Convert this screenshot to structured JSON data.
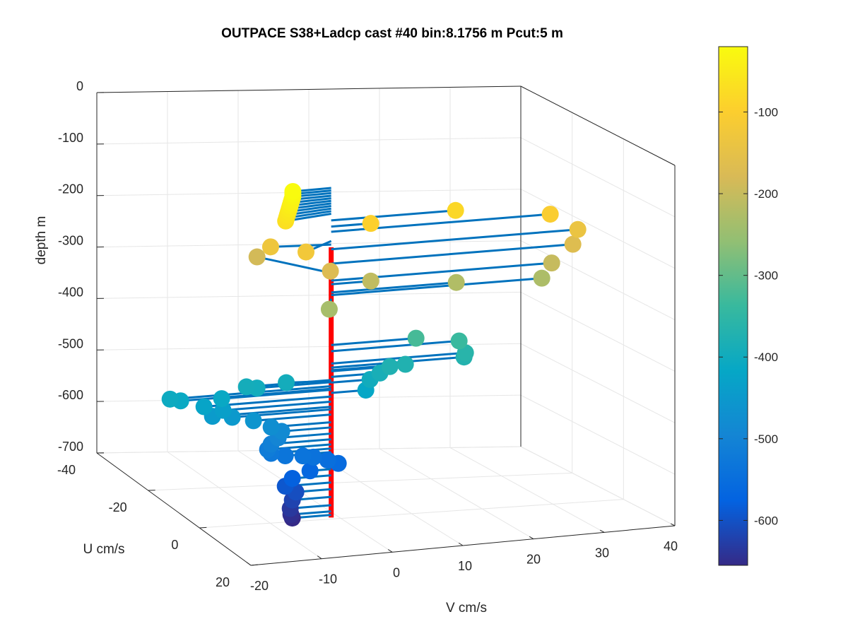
{
  "chart_data": {
    "type": "scatter",
    "title": "OUTPACE S38+Ladcp cast #40 bin:8.1756 m  Pcut:5 m",
    "xlabel": "V cm/s",
    "ylabel": "U cm/s",
    "zlabel": "depth m",
    "xlim": [
      -20,
      40
    ],
    "ylim": [
      -40,
      20
    ],
    "zlim": [
      -700,
      0
    ],
    "x_ticks": [
      "-20",
      "-10",
      "0",
      "10",
      "20",
      "30",
      "40"
    ],
    "y_ticks": [
      "-40",
      "-20",
      "0",
      "20"
    ],
    "z_ticks": [
      "0",
      "-100",
      "-200",
      "-300",
      "-400",
      "-500",
      "-600",
      "-700"
    ],
    "grid": true,
    "colorbar": {
      "ticks": [
        "-100",
        "-200",
        "-300",
        "-400",
        "-500",
        "-600"
      ],
      "range": [
        -655,
        -20
      ],
      "colormap": "parula"
    },
    "series": [
      {
        "kind": "vertical-line",
        "color": "#ff0000",
        "x": -5,
        "y": 10,
        "z": [
          -135,
          -660
        ]
      },
      {
        "kind": "quiver-with-heads",
        "origin": {
          "x": -5,
          "y": 10
        },
        "line_color": "#0072bd",
        "points": [
          {
            "v": -10.5,
            "u": 10.2,
            "depth": -20
          },
          {
            "v": -10.5,
            "u": 10.2,
            "depth": -25
          },
          {
            "v": -10.5,
            "u": 10.2,
            "depth": -30
          },
          {
            "v": -10.7,
            "u": 10.4,
            "depth": -35
          },
          {
            "v": -10.9,
            "u": 10.6,
            "depth": -40
          },
          {
            "v": -11.1,
            "u": 10.8,
            "depth": -45
          },
          {
            "v": -11.3,
            "u": 11.0,
            "depth": -50
          },
          {
            "v": -11.5,
            "u": 11.2,
            "depth": -55
          },
          {
            "v": -11.7,
            "u": 11.4,
            "depth": -60
          },
          {
            "v": -11.9,
            "u": 11.6,
            "depth": -65
          },
          {
            "v": -12.1,
            "u": 11.8,
            "depth": -70
          },
          {
            "v": -13.1,
            "u": 8.7,
            "depth": -130
          },
          {
            "v": -11.5,
            "u": -1.0,
            "depth": -185
          },
          {
            "v": -10.2,
            "u": 14.5,
            "depth": -123
          },
          {
            "v": 0.6,
            "u": 10.0,
            "depth": -95
          },
          {
            "v": 12.6,
            "u": 10.0,
            "depth": -83
          },
          {
            "v": 26.0,
            "u": 10.0,
            "depth": -105
          },
          {
            "v": 29.9,
            "u": 10.0,
            "depth": -139
          },
          {
            "v": 29.2,
            "u": 10.0,
            "depth": -167
          },
          {
            "v": 26.2,
            "u": 10.0,
            "depth": -200
          },
          {
            "v": 24.8,
            "u": 10.0,
            "depth": -228
          },
          {
            "v": 12.7,
            "u": 10.0,
            "depth": -223
          },
          {
            "v": 0.6,
            "u": 10.0,
            "depth": -207
          },
          {
            "v": -6.2,
            "u": 13.0,
            "depth": -170
          },
          {
            "v": -7.2,
            "u": 15.3,
            "depth": -235
          },
          {
            "v": 7.0,
            "u": 10.0,
            "depth": -325
          },
          {
            "v": 13.1,
            "u": 10.0,
            "depth": -337
          },
          {
            "v": 14.0,
            "u": 10.0,
            "depth": -361
          },
          {
            "v": 13.8,
            "u": 10.0,
            "depth": -369
          },
          {
            "v": 5.5,
            "u": 10.0,
            "depth": -374
          },
          {
            "v": 3.3,
            "u": 10.0,
            "depth": -376
          },
          {
            "v": 1.9,
            "u": 10.0,
            "depth": -387
          },
          {
            "v": 0.5,
            "u": 10.0,
            "depth": -398
          },
          {
            "v": -0.1,
            "u": 10.0,
            "depth": -418
          },
          {
            "v": -11.0,
            "u": 9.0,
            "depth": -395
          },
          {
            "v": -17.0,
            "u": 10.0,
            "depth": -393
          },
          {
            "v": -15.5,
            "u": 10.0,
            "depth": -397
          },
          {
            "v": -27.8,
            "u": 10.0,
            "depth": -405
          },
          {
            "v": -26.3,
            "u": 10.0,
            "depth": -410
          },
          {
            "v": -20.5,
            "u": 10.0,
            "depth": -412
          },
          {
            "v": -23.0,
            "u": 10.0,
            "depth": -425
          },
          {
            "v": -20.3,
            "u": 10.0,
            "depth": -435
          },
          {
            "v": -21.8,
            "u": 10.0,
            "depth": -445
          },
          {
            "v": -19.0,
            "u": 10.0,
            "depth": -450
          },
          {
            "v": -16.0,
            "u": 10.0,
            "depth": -460
          },
          {
            "v": -13.5,
            "u": 10.0,
            "depth": -475
          },
          {
            "v": -12.0,
            "u": 10.0,
            "depth": -485
          },
          {
            "v": -12.5,
            "u": 10.0,
            "depth": -497
          },
          {
            "v": -13.5,
            "u": 10.0,
            "depth": -508
          },
          {
            "v": -14.0,
            "u": 10.0,
            "depth": -518
          },
          {
            "v": -13.5,
            "u": 10.0,
            "depth": -526
          },
          {
            "v": -11.5,
            "u": 10.0,
            "depth": -533
          },
          {
            "v": -9.0,
            "u": 10.0,
            "depth": -536
          },
          {
            "v": -7.5,
            "u": 10.0,
            "depth": -540
          },
          {
            "v": -5.5,
            "u": 10.0,
            "depth": -548
          },
          {
            "v": -4.0,
            "u": 10.0,
            "depth": -556
          },
          {
            "v": -8.0,
            "u": 10.0,
            "depth": -566
          },
          {
            "v": -10.5,
            "u": 10.0,
            "depth": -578
          },
          {
            "v": -11.5,
            "u": 10.0,
            "depth": -592
          },
          {
            "v": -10.0,
            "u": 10.0,
            "depth": -605
          },
          {
            "v": -10.5,
            "u": 10.0,
            "depth": -620
          },
          {
            "v": -10.8,
            "u": 10.0,
            "depth": -636
          },
          {
            "v": -10.7,
            "u": 10.0,
            "depth": -648
          },
          {
            "v": -10.5,
            "u": 10.0,
            "depth": -655
          }
        ]
      }
    ]
  }
}
